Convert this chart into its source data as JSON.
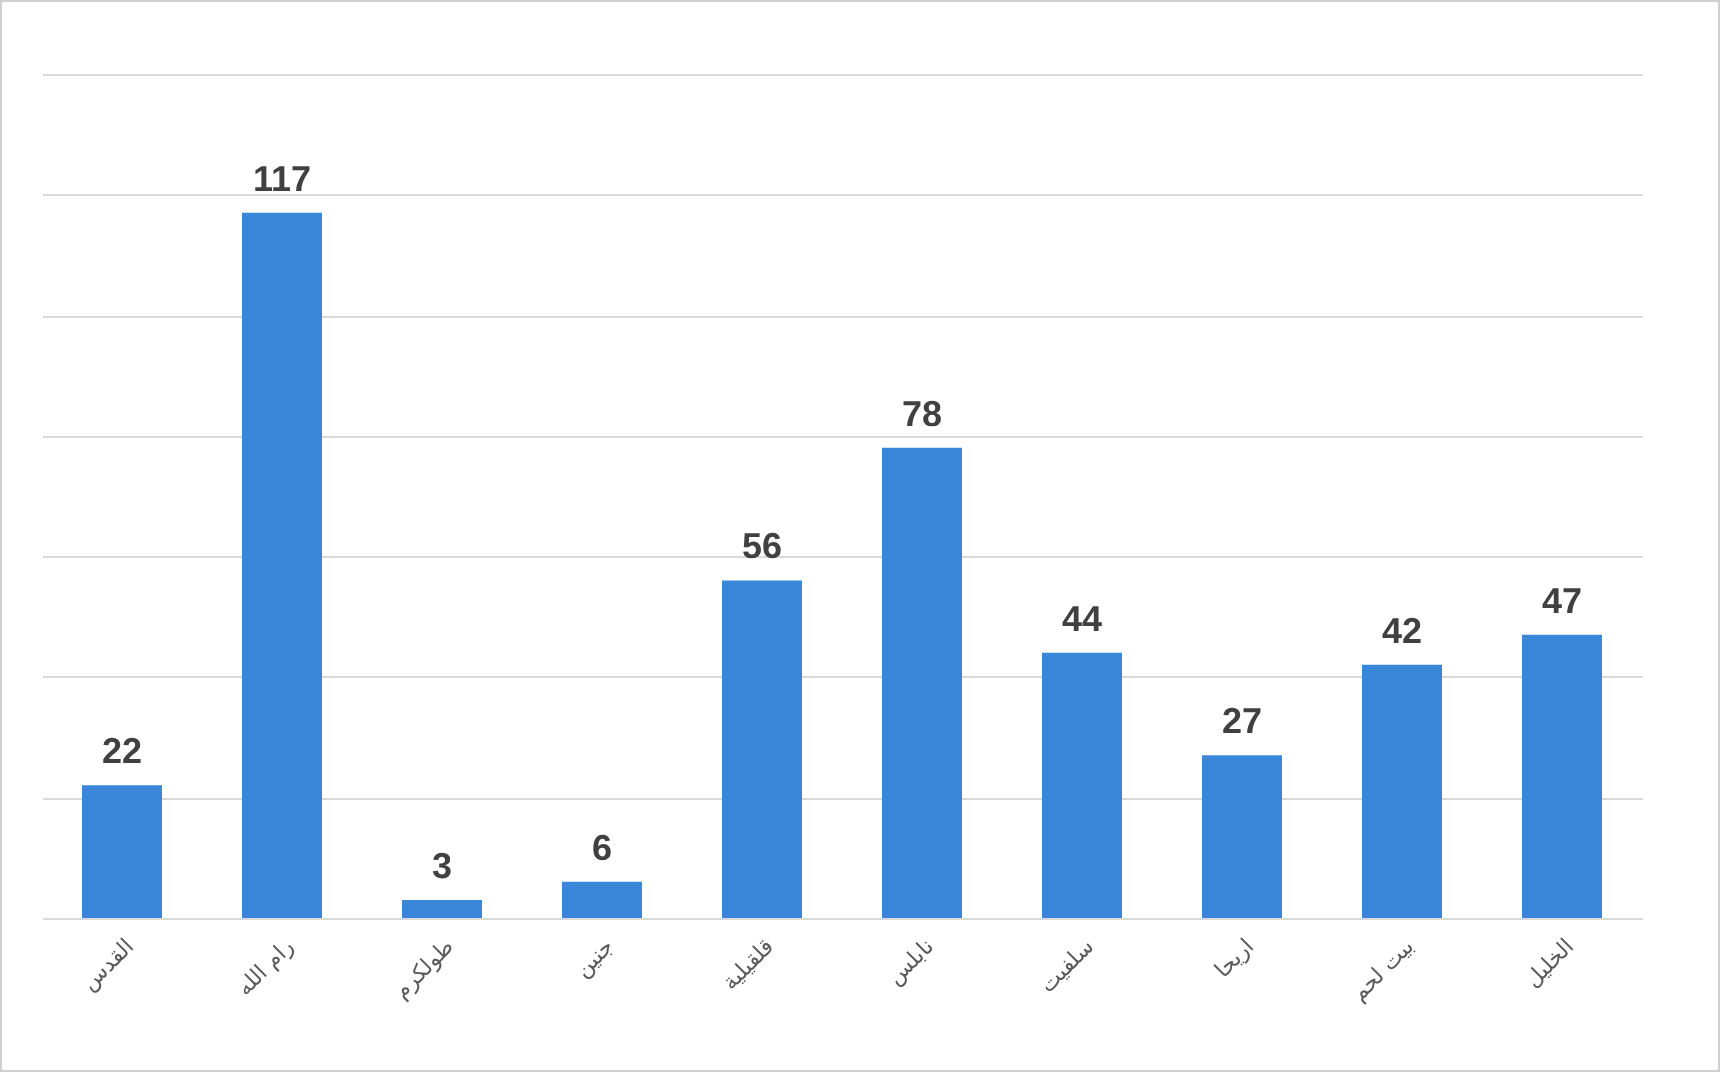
{
  "chart_data": {
    "type": "bar",
    "categories": [
      "القدس",
      "رام الله",
      "طولكرم",
      "جنين",
      "قلقيلية",
      "نابلس",
      "سلفيت",
      "اريحا",
      "بيت لحم",
      "الخليل"
    ],
    "values": [
      22,
      117,
      3,
      6,
      56,
      78,
      44,
      27,
      42,
      47
    ],
    "color": "#3a87d9",
    "ylim": [
      0,
      140
    ],
    "yticks": [
      0,
      20,
      40,
      60,
      80,
      100,
      120,
      140
    ],
    "grid": "y",
    "tick_labels": "x",
    "data_labels": true
  }
}
